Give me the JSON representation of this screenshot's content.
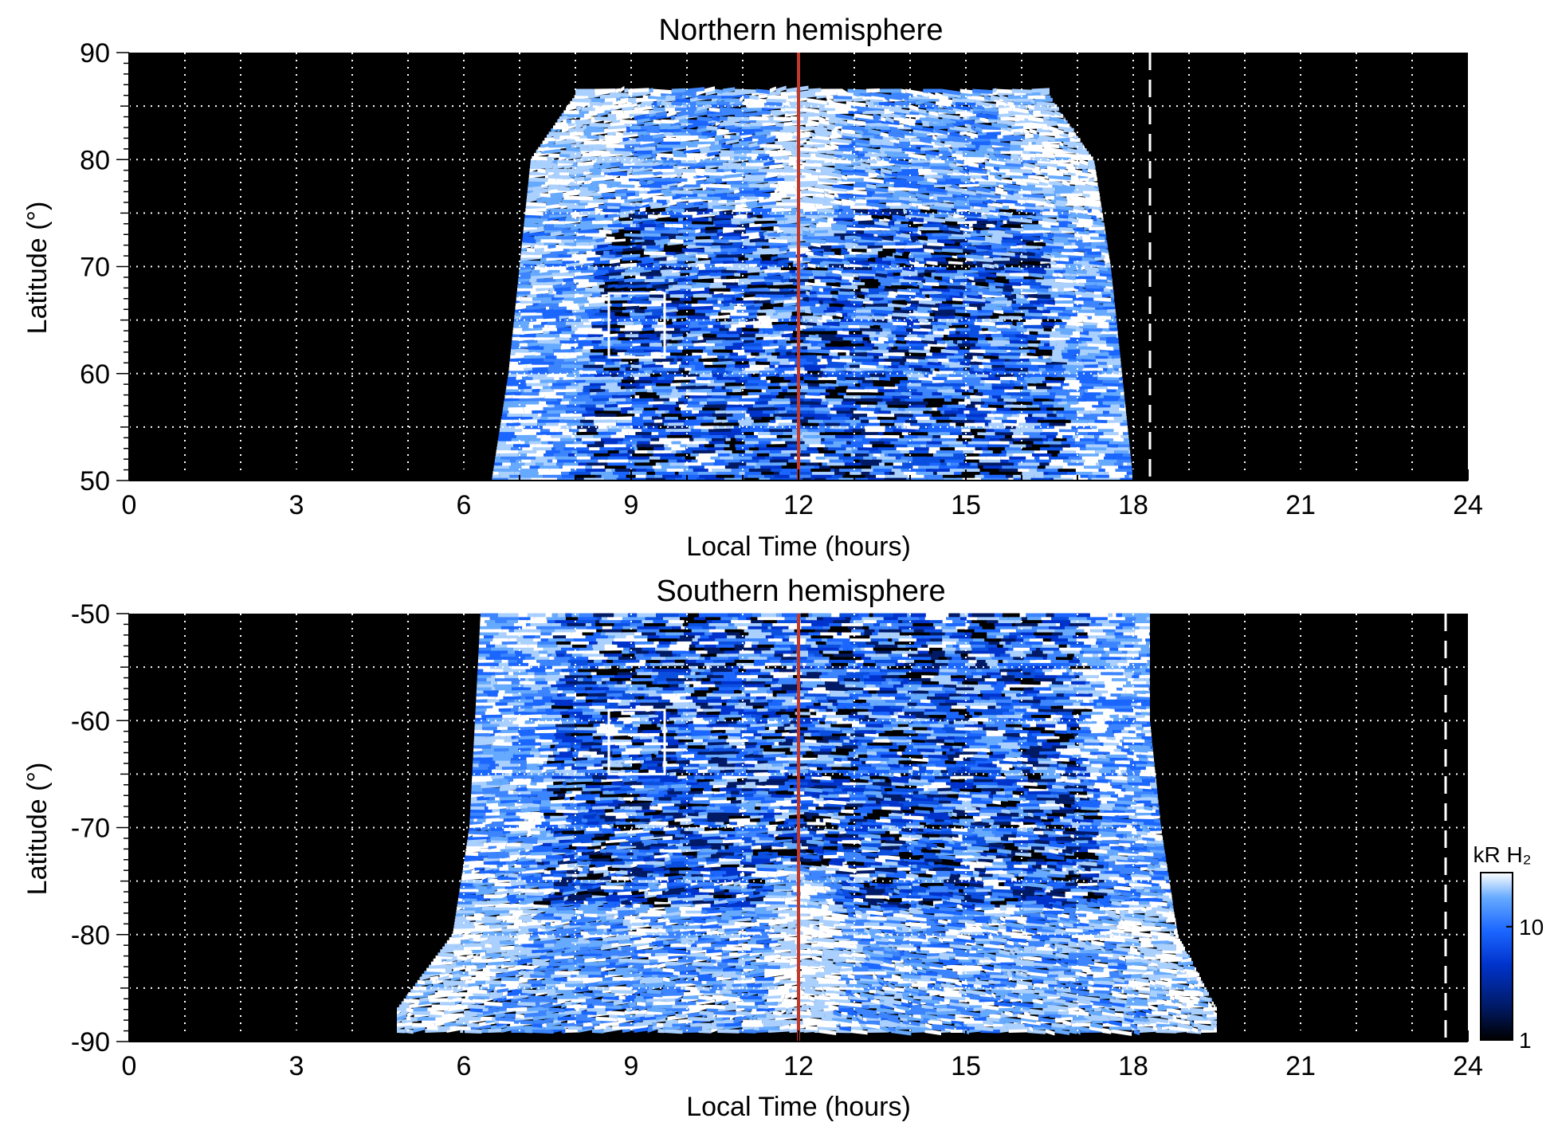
{
  "chart_data": [
    {
      "type": "heatmap",
      "title": "Northern hemisphere",
      "xlabel": "Local Time (hours)",
      "ylabel": "Latitude (°)",
      "xlim": [
        0,
        24
      ],
      "ylim": [
        50,
        90
      ],
      "x_ticks": [
        "0",
        "3",
        "6",
        "9",
        "12",
        "15",
        "18",
        "21",
        "24"
      ],
      "x_tick_values": [
        0,
        3,
        6,
        9,
        12,
        15,
        18,
        21,
        24
      ],
      "y_ticks": [
        "50",
        "60",
        "70",
        "80",
        "90"
      ],
      "y_tick_values": [
        50,
        60,
        70,
        80,
        90
      ],
      "grid": true,
      "grid_style": "dotted white, 1 h and 5° spacing",
      "background_color": "#000000",
      "emission_region": {
        "lt_start_at_lat": [
          [
            50,
            6.5
          ],
          [
            60,
            6.8
          ],
          [
            70,
            7.0
          ],
          [
            80,
            7.2
          ],
          [
            86,
            8.0
          ]
        ],
        "lt_end_at_lat": [
          [
            50,
            18.0
          ],
          [
            60,
            17.8
          ],
          [
            70,
            17.6
          ],
          [
            80,
            17.3
          ],
          [
            86,
            16.5
          ]
        ],
        "max_latitude": 86.5
      },
      "noon_line": {
        "lt": 12,
        "color": "#c0392b"
      },
      "dashed_line": {
        "lt": 18.3,
        "color": "#ffffff"
      },
      "box": {
        "lt_range": [
          8.6,
          9.6
        ],
        "lat_range": [
          61.5,
          67.5
        ]
      }
    },
    {
      "type": "heatmap",
      "title": "Southern hemisphere",
      "xlabel": "Local Time (hours)",
      "ylabel": "Latitude (°)",
      "xlim": [
        0,
        24
      ],
      "ylim": [
        -90,
        -50
      ],
      "x_ticks": [
        "0",
        "3",
        "6",
        "9",
        "12",
        "15",
        "18",
        "21",
        "24"
      ],
      "x_tick_values": [
        0,
        3,
        6,
        9,
        12,
        15,
        18,
        21,
        24
      ],
      "y_ticks": [
        "-50",
        "-60",
        "-70",
        "-80",
        "-90"
      ],
      "y_tick_values": [
        -50,
        -60,
        -70,
        -80,
        -90
      ],
      "grid": true,
      "grid_style": "dotted white, 1 h and 5° spacing",
      "background_color": "#000000",
      "emission_region": {
        "lt_start_at_lat": [
          [
            -50,
            6.3
          ],
          [
            -60,
            6.2
          ],
          [
            -70,
            6.1
          ],
          [
            -80,
            5.8
          ],
          [
            -87,
            4.8
          ]
        ],
        "lt_end_at_lat": [
          [
            -50,
            18.3
          ],
          [
            -60,
            18.3
          ],
          [
            -70,
            18.5
          ],
          [
            -80,
            18.8
          ],
          [
            -87,
            19.5
          ]
        ],
        "max_latitude": -89
      },
      "noon_line": {
        "lt": 12,
        "color": "#c0392b"
      },
      "dashed_line": {
        "lt": 23.6,
        "color": "#ffffff"
      },
      "box": {
        "lt_range": [
          8.6,
          9.6
        ],
        "lat_range": [
          -65,
          -59
        ]
      },
      "colorbar": {
        "label": "kR H₂",
        "scale": "log",
        "range": [
          1,
          30
        ],
        "ticks": [
          "1",
          "10"
        ],
        "tick_values": [
          1,
          10
        ],
        "colors": [
          "#000000",
          "#001a66",
          "#0033cc",
          "#1a66ff",
          "#66aaff",
          "#ffffff"
        ]
      }
    }
  ]
}
